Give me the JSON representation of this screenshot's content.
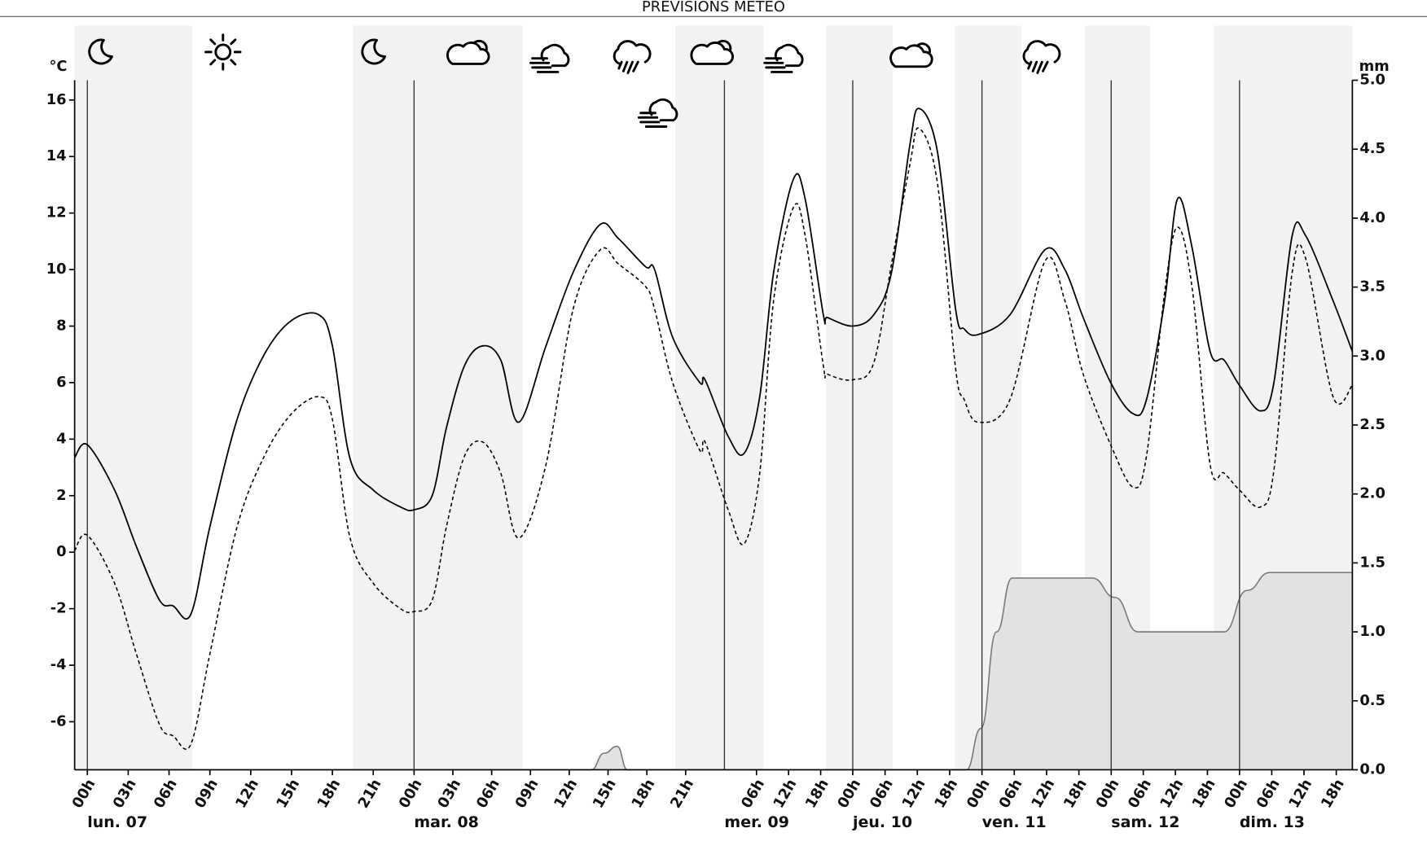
{
  "chart_data": {
    "type": "line",
    "title": "PREVISIONS METEO",
    "y_label": "°C",
    "y2_label": "mm",
    "xlim": [
      -1,
      165
    ],
    "ylim": [
      -7.7,
      16.7
    ],
    "yticks": [
      -6,
      -4,
      -2,
      0,
      2,
      4,
      6,
      8,
      10,
      12,
      14,
      16
    ],
    "y2lim": [
      0,
      5
    ],
    "y2ticks": [
      {
        "value": 0,
        "label": "0.0"
      },
      0.5,
      {
        "value": 1,
        "label": "1.0"
      },
      1.5,
      {
        "value": 2,
        "label": "2.0"
      },
      2.5,
      {
        "value": 3,
        "label": "3.0"
      },
      3.5,
      {
        "value": 4,
        "label": "4.0"
      },
      4.5,
      {
        "value": 5,
        "label": "5.0"
      }
    ],
    "xticks": [
      {
        "value": 0,
        "label": "00h"
      },
      {
        "value": 3,
        "label": "03h"
      },
      {
        "value": 6,
        "label": "06h"
      },
      {
        "value": 9,
        "label": "09h"
      },
      {
        "value": 12,
        "label": "12h"
      },
      {
        "value": 15,
        "label": "15h"
      },
      {
        "value": 18,
        "label": "18h"
      },
      {
        "value": 21,
        "label": "21h"
      },
      {
        "value": 24,
        "label": "00h"
      },
      {
        "value": 27,
        "label": "03h"
      },
      {
        "value": 30,
        "label": "06h"
      },
      {
        "value": 33,
        "label": "09h"
      },
      {
        "value": 36,
        "label": "12h"
      },
      {
        "value": 39,
        "label": "15h"
      },
      {
        "value": 42,
        "label": "18h"
      },
      {
        "value": 45,
        "label": "21h"
      },
      {
        "value": 54,
        "label": "06h"
      },
      {
        "value": 60,
        "label": "12h"
      },
      {
        "value": 66,
        "label": "18h"
      },
      {
        "value": 72,
        "label": "00h"
      },
      {
        "value": 78,
        "label": "06h"
      },
      {
        "value": 84,
        "label": "12h"
      },
      {
        "value": 90,
        "label": "18h"
      },
      {
        "value": 96,
        "label": "00h"
      },
      {
        "value": 102,
        "label": "06h"
      },
      {
        "value": 108,
        "label": "12h"
      },
      {
        "value": 114,
        "label": "18h"
      },
      {
        "value": 120,
        "label": "00h"
      },
      {
        "value": 126,
        "label": "06h"
      },
      {
        "value": 132,
        "label": "12h"
      },
      {
        "value": 138,
        "label": "18h"
      },
      {
        "value": 144,
        "label": "00h"
      },
      {
        "value": 150,
        "label": "06h"
      },
      {
        "value": 156,
        "label": "12h"
      },
      {
        "value": 162,
        "label": "18h"
      }
    ],
    "days": [
      {
        "value": 0,
        "label": "lun. 07"
      },
      {
        "value": 24,
        "label": "mar. 08"
      },
      {
        "value": 48,
        "label": "mer. 09"
      },
      {
        "value": 72,
        "label": "jeu. 10"
      },
      {
        "value": 96,
        "label": "ven. 11"
      },
      {
        "value": 120,
        "label": "sam. 12"
      },
      {
        "value": 144,
        "label": "dim. 13"
      }
    ],
    "night_bands": [
      [
        -1,
        7.7
      ],
      [
        19.5,
        32.4
      ],
      [
        44.2,
        55.3
      ],
      [
        67,
        79.4
      ],
      [
        91,
        103.3
      ],
      [
        115.1,
        127.3
      ],
      [
        139.2,
        165
      ]
    ],
    "band_color": "#f2f2f2",
    "x": [
      -1,
      0,
      2,
      3.6,
      5.3,
      6.3,
      7.6,
      9,
      11,
      13,
      15,
      17,
      18,
      19.3,
      21,
      23,
      24,
      25.4,
      26.5,
      27.9,
      29.3,
      30.7,
      32.1,
      34.2,
      36.3,
      38.4,
      39.8,
      41.9,
      42.6,
      44,
      46.1,
      46.5,
      48.7,
      51.7,
      54.6,
      57.2,
      60.9,
      63.1,
      66.5,
      67.3,
      72,
      75.9,
      79.2,
      82.6,
      84.3,
      87.7,
      91.1,
      92.7,
      95.3,
      101.2,
      107.7,
      111.4,
      114.8,
      119.9,
      124.1,
      126.6,
      130,
      132.4,
      135.1,
      138.5,
      141.1,
      144,
      147.9,
      150.4,
      153.8,
      156.3,
      161.4,
      165
    ],
    "series": [
      {
        "color": "#000000",
        "dash": false,
        "values": [
          3.35,
          3.8,
          2.2,
          0.2,
          -1.7,
          -1.9,
          -2.2,
          0.9,
          4.7,
          7.0,
          8.2,
          8.4,
          7.3,
          3.3,
          2.2,
          1.6,
          1.5,
          2.0,
          4.4,
          6.6,
          7.3,
          6.8,
          4.6,
          7.3,
          9.9,
          11.6,
          11.1,
          10.1,
          10.0,
          7.6,
          6.0,
          6.1,
          4.1,
          3.5,
          5.5,
          9.9,
          13.2,
          12.5,
          8.4,
          8.3,
          8.0,
          8.4,
          9.9,
          14.4,
          15.7,
          14.2,
          8.6,
          7.9,
          7.7,
          8.4,
          10.7,
          10.0,
          8.3,
          6.0,
          4.9,
          5.4,
          8.9,
          12.5,
          10.8,
          7.1,
          6.8,
          5.9,
          5.0,
          6.0,
          11.2,
          11.2,
          8.9,
          7.1
        ]
      },
      {
        "color": "#000000",
        "dash": true,
        "values": [
          0.05,
          0.6,
          -1.1,
          -3.6,
          -6.1,
          -6.5,
          -6.8,
          -3.6,
          0.9,
          3.4,
          4.9,
          5.5,
          4.7,
          0.5,
          -1.1,
          -2.0,
          -2.1,
          -1.7,
          0.9,
          3.4,
          3.9,
          2.8,
          0.5,
          3.1,
          8.6,
          10.7,
          10.2,
          9.4,
          8.6,
          6.0,
          3.6,
          3.9,
          1.5,
          0.3,
          2.8,
          8.9,
          12.2,
          11.2,
          6.6,
          6.3,
          6.1,
          6.7,
          10.2,
          13.7,
          15.0,
          13.1,
          6.5,
          5.4,
          4.6,
          5.4,
          10.3,
          8.9,
          6.3,
          3.8,
          2.3,
          3.4,
          9.2,
          11.5,
          9.4,
          3.1,
          2.8,
          2.2,
          1.6,
          2.9,
          9.9,
          10.4,
          5.5,
          5.9
        ]
      },
      {
        "type": "area",
        "axis": "y2",
        "color": "#777777",
        "fill": "#e2e2e2",
        "x": [
          -1,
          37.7,
          38.7,
          39.7,
          40.5,
          93.1,
          95.8,
          98.7,
          101.6,
          116.5,
          120.7,
          125,
          141.1,
          145.4,
          149.6,
          165
        ],
        "values": [
          0,
          0,
          0.12,
          0.17,
          0,
          0,
          0.3,
          1.0,
          1.39,
          1.39,
          1.25,
          1.0,
          1.0,
          1.3,
          1.43,
          1.43
        ]
      }
    ]
  }
}
